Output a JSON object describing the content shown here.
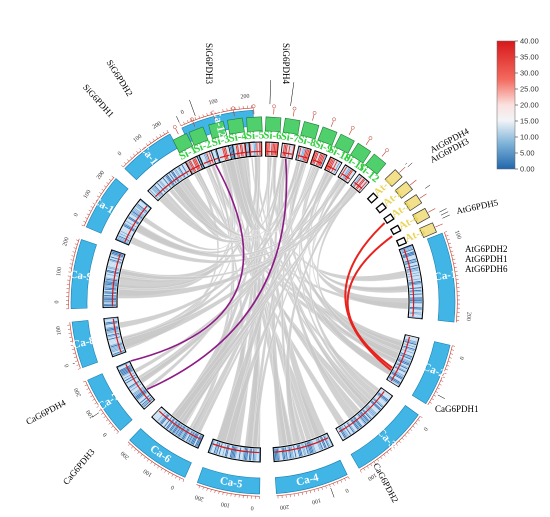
{
  "colors": {
    "ca": "#41b6e6",
    "si": "#4fd06c",
    "at": "#f3e08b",
    "link_gray": "#c9c9c9",
    "link_red": "#e8231e",
    "link_purple": "#8e1a86"
  },
  "ca_chromosomes": [
    {
      "label": "Ca-1",
      "ticks": [
        "100",
        "200"
      ]
    },
    {
      "label": "Ca-2",
      "ticks": [
        "0"
      ]
    },
    {
      "label": "Ca-3",
      "ticks": [
        "0",
        "100"
      ]
    },
    {
      "label": "Ca-4",
      "ticks": [
        "0",
        "100",
        "200"
      ]
    },
    {
      "label": "Ca-5",
      "ticks": [
        "0",
        "100",
        "200"
      ]
    },
    {
      "label": "Ca-6",
      "ticks": [
        "0",
        "100",
        "200"
      ]
    },
    {
      "label": "Ca-7",
      "ticks": [
        "0",
        "100",
        "200"
      ]
    },
    {
      "label": "Ca-8",
      "ticks": [
        "0",
        "100"
      ]
    },
    {
      "label": "Ca-9",
      "ticks": [
        "0",
        "100",
        "200"
      ]
    },
    {
      "label": "Ca-10",
      "ticks": [
        "0",
        "100",
        "200"
      ]
    },
    {
      "label": "Ca-11",
      "ticks": [
        "0",
        "100",
        "200"
      ]
    },
    {
      "label": "Ca-12",
      "ticks": [
        "0",
        "100",
        "200"
      ]
    }
  ],
  "si_chromosomes": [
    "Si-1",
    "Si-2",
    "Si-3",
    "Si-4",
    "Si-5",
    "Si-6",
    "Si-7",
    "Si-8",
    "Si-9",
    "Si-10",
    "Si-11",
    "Si-12"
  ],
  "at_chromosomes": [
    "At-1",
    "At-2",
    "At-3",
    "At-4",
    "At-5"
  ],
  "gene_labels": {
    "si": [
      "SiG6PDH1",
      "SiG6PDH2",
      "SiG6PDH3",
      "SiG6PDH4"
    ],
    "at": [
      "AtG6PDH4",
      "AtG6PDH3",
      "AtG6PDH5",
      "AtG6PDH2",
      "AtG6PDH1",
      "AtG6PDH6"
    ],
    "ca": [
      "CaG6PDH1",
      "CaG6PDH2",
      "CaG6PDH3",
      "CaG6PDH4"
    ]
  },
  "colorbar": {
    "ticks": [
      "40.00",
      "35.00",
      "30.00",
      "25.00",
      "20.00",
      "15.00",
      "10.00",
      "5.00",
      "0.00"
    ],
    "max": 40,
    "min": 0
  }
}
